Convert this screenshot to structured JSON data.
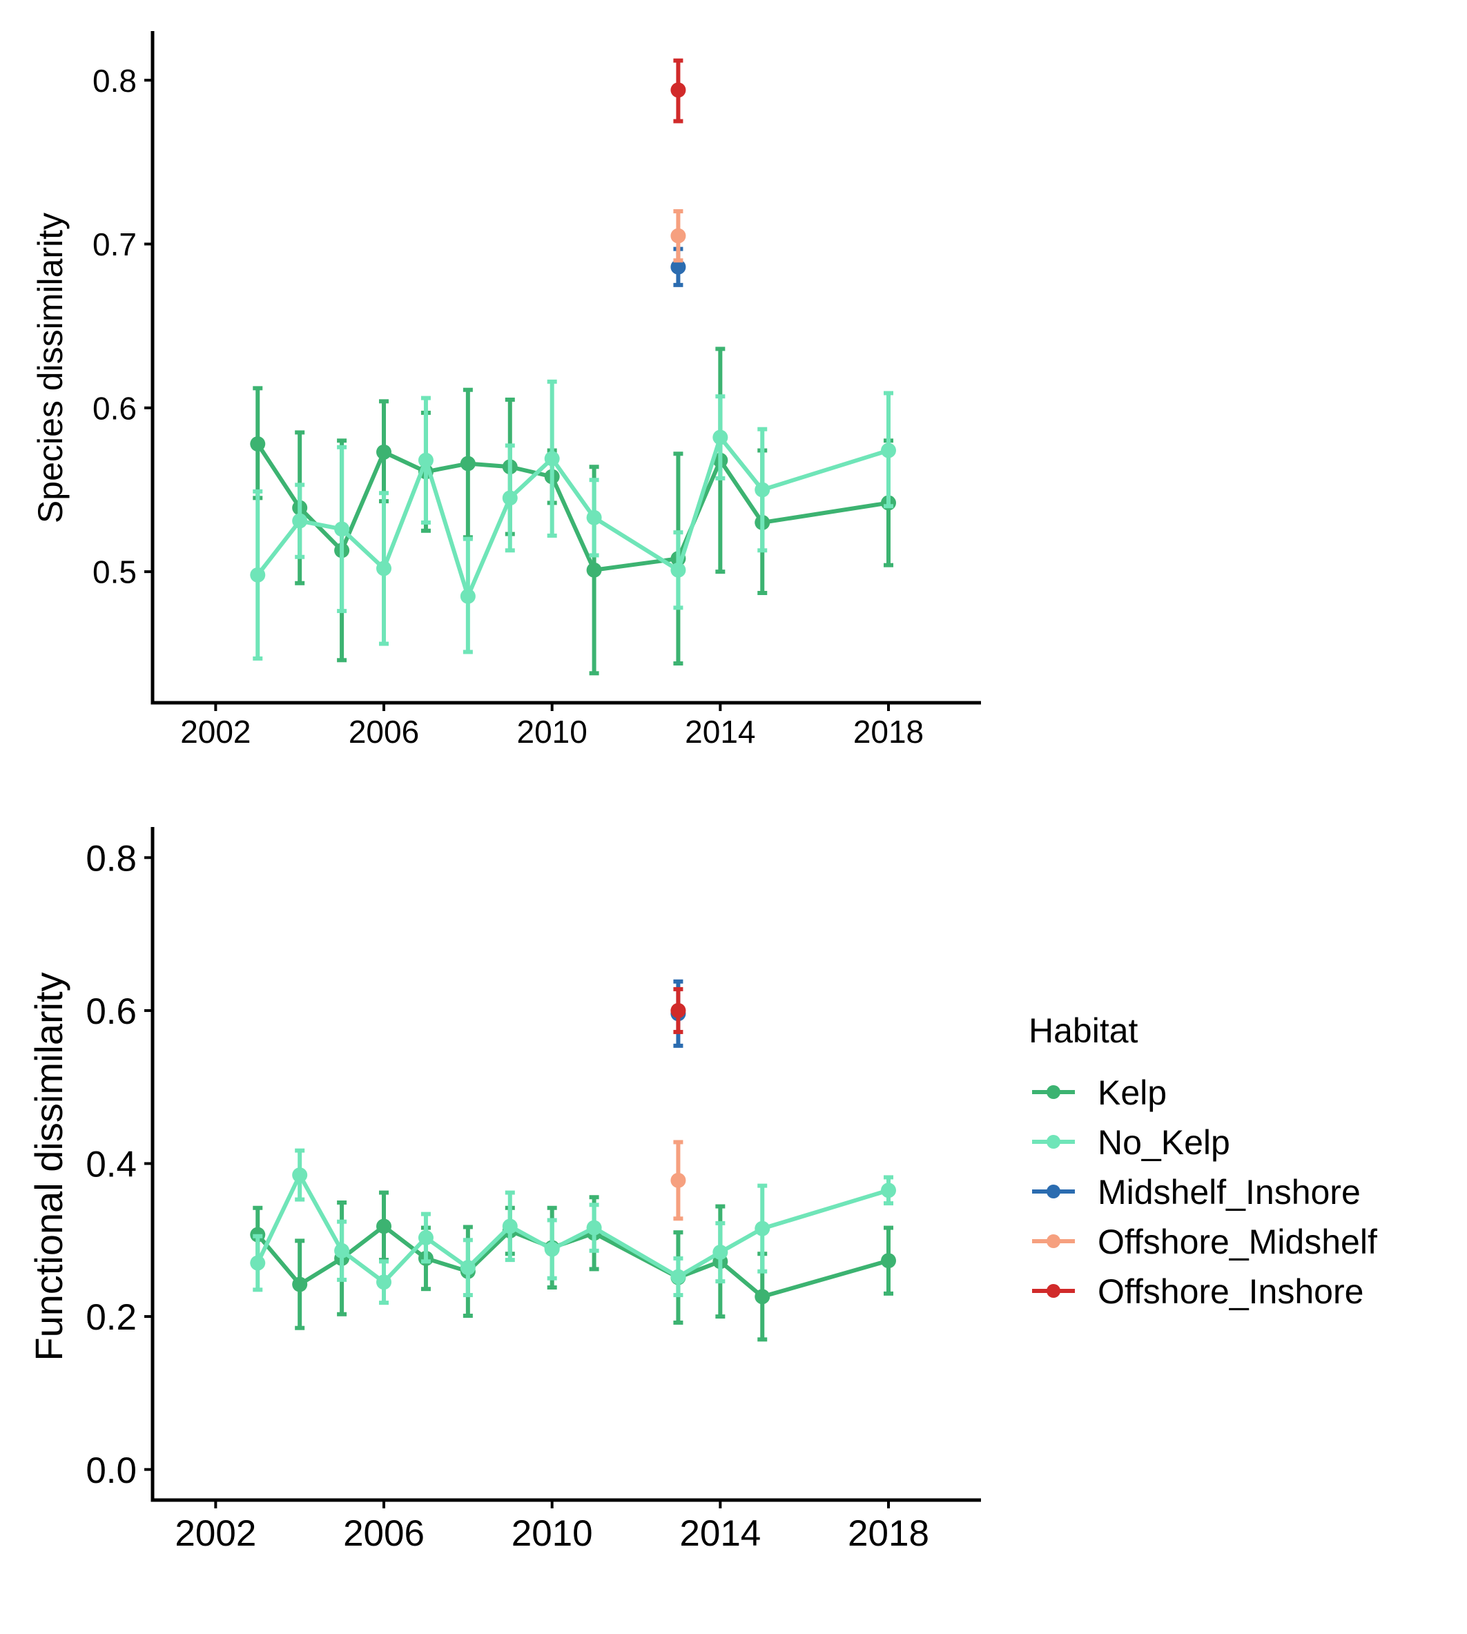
{
  "legend": {
    "title": "Habitat",
    "items": [
      {
        "label": "Kelp",
        "color": "#3CB371"
      },
      {
        "label": "No_Kelp",
        "color": "#6FE5B8"
      },
      {
        "label": "Midshelf_Inshore",
        "color": "#2B6CB0"
      },
      {
        "label": "Offshore_Midshelf",
        "color": "#F6A07F"
      },
      {
        "label": "Offshore_Inshore",
        "color": "#D12A2A"
      }
    ]
  },
  "chart_data": [
    {
      "type": "line",
      "ylabel": "Species dissimilarity",
      "xlabel": "",
      "xlim": [
        2000.5,
        2020.2
      ],
      "ylim": [
        0.42,
        0.83
      ],
      "x_ticks": [
        2002,
        2006,
        2010,
        2014,
        2018
      ],
      "y_ticks": [
        0.5,
        0.6,
        0.7,
        0.8
      ],
      "y_tick_labels": [
        "0.5",
        "0.6",
        "0.7",
        "0.8"
      ],
      "series": [
        {
          "name": "Kelp",
          "color": "#3CB371",
          "line": true,
          "points": [
            {
              "x": 2003,
              "y": 0.578,
              "lo": 0.545,
              "hi": 0.612
            },
            {
              "x": 2004,
              "y": 0.539,
              "lo": 0.493,
              "hi": 0.585
            },
            {
              "x": 2005,
              "y": 0.513,
              "lo": 0.446,
              "hi": 0.58
            },
            {
              "x": 2006,
              "y": 0.573,
              "lo": 0.543,
              "hi": 0.604
            },
            {
              "x": 2007,
              "y": 0.561,
              "lo": 0.525,
              "hi": 0.597
            },
            {
              "x": 2008,
              "y": 0.566,
              "lo": 0.521,
              "hi": 0.611
            },
            {
              "x": 2009,
              "y": 0.564,
              "lo": 0.523,
              "hi": 0.605
            },
            {
              "x": 2010,
              "y": 0.558,
              "lo": 0.542,
              "hi": 0.574
            },
            {
              "x": 2011,
              "y": 0.501,
              "lo": 0.438,
              "hi": 0.564
            },
            {
              "x": 2013,
              "y": 0.508,
              "lo": 0.444,
              "hi": 0.572
            },
            {
              "x": 2014,
              "y": 0.568,
              "lo": 0.5,
              "hi": 0.636
            },
            {
              "x": 2015,
              "y": 0.53,
              "lo": 0.487,
              "hi": 0.574
            },
            {
              "x": 2018,
              "y": 0.542,
              "lo": 0.504,
              "hi": 0.58
            }
          ]
        },
        {
          "name": "No_Kelp",
          "color": "#6FE5B8",
          "line": true,
          "points": [
            {
              "x": 2003,
              "y": 0.498,
              "lo": 0.447,
              "hi": 0.549
            },
            {
              "x": 2004,
              "y": 0.531,
              "lo": 0.509,
              "hi": 0.553
            },
            {
              "x": 2005,
              "y": 0.526,
              "lo": 0.476,
              "hi": 0.576
            },
            {
              "x": 2006,
              "y": 0.502,
              "lo": 0.456,
              "hi": 0.548
            },
            {
              "x": 2007,
              "y": 0.568,
              "lo": 0.53,
              "hi": 0.606
            },
            {
              "x": 2008,
              "y": 0.485,
              "lo": 0.451,
              "hi": 0.52
            },
            {
              "x": 2009,
              "y": 0.545,
              "lo": 0.513,
              "hi": 0.577
            },
            {
              "x": 2010,
              "y": 0.569,
              "lo": 0.522,
              "hi": 0.616
            },
            {
              "x": 2011,
              "y": 0.533,
              "lo": 0.51,
              "hi": 0.556
            },
            {
              "x": 2013,
              "y": 0.501,
              "lo": 0.478,
              "hi": 0.524
            },
            {
              "x": 2014,
              "y": 0.582,
              "lo": 0.557,
              "hi": 0.607
            },
            {
              "x": 2015,
              "y": 0.55,
              "lo": 0.513,
              "hi": 0.587
            },
            {
              "x": 2018,
              "y": 0.574,
              "lo": 0.54,
              "hi": 0.609
            }
          ]
        },
        {
          "name": "Midshelf_Inshore",
          "color": "#2B6CB0",
          "line": false,
          "points": [
            {
              "x": 2013,
              "y": 0.686,
              "lo": 0.675,
              "hi": 0.697
            }
          ]
        },
        {
          "name": "Offshore_Midshelf",
          "color": "#F6A07F",
          "line": false,
          "points": [
            {
              "x": 2013,
              "y": 0.705,
              "lo": 0.69,
              "hi": 0.72
            }
          ]
        },
        {
          "name": "Offshore_Inshore",
          "color": "#D12A2A",
          "line": false,
          "points": [
            {
              "x": 2013,
              "y": 0.794,
              "lo": 0.775,
              "hi": 0.812
            }
          ]
        }
      ]
    },
    {
      "type": "line",
      "ylabel": "Functional dissimilarity",
      "xlabel": "",
      "xlim": [
        2000.5,
        2020.2
      ],
      "ylim": [
        -0.04,
        0.84
      ],
      "x_ticks": [
        2002,
        2006,
        2010,
        2014,
        2018
      ],
      "y_ticks": [
        0.0,
        0.2,
        0.4,
        0.6,
        0.8
      ],
      "y_tick_labels": [
        "0.0",
        "0.2",
        "0.4",
        "0.6",
        "0.8"
      ],
      "series": [
        {
          "name": "Kelp",
          "color": "#3CB371",
          "line": true,
          "points": [
            {
              "x": 2003,
              "y": 0.307,
              "lo": 0.272,
              "hi": 0.342
            },
            {
              "x": 2004,
              "y": 0.242,
              "lo": 0.185,
              "hi": 0.299
            },
            {
              "x": 2005,
              "y": 0.276,
              "lo": 0.203,
              "hi": 0.349
            },
            {
              "x": 2006,
              "y": 0.318,
              "lo": 0.274,
              "hi": 0.362
            },
            {
              "x": 2007,
              "y": 0.276,
              "lo": 0.236,
              "hi": 0.316
            },
            {
              "x": 2008,
              "y": 0.259,
              "lo": 0.201,
              "hi": 0.317
            },
            {
              "x": 2009,
              "y": 0.312,
              "lo": 0.282,
              "hi": 0.342
            },
            {
              "x": 2010,
              "y": 0.29,
              "lo": 0.238,
              "hi": 0.342
            },
            {
              "x": 2011,
              "y": 0.309,
              "lo": 0.262,
              "hi": 0.356
            },
            {
              "x": 2013,
              "y": 0.251,
              "lo": 0.192,
              "hi": 0.31
            },
            {
              "x": 2014,
              "y": 0.272,
              "lo": 0.2,
              "hi": 0.344
            },
            {
              "x": 2015,
              "y": 0.226,
              "lo": 0.17,
              "hi": 0.282
            },
            {
              "x": 2018,
              "y": 0.273,
              "lo": 0.23,
              "hi": 0.316
            }
          ]
        },
        {
          "name": "No_Kelp",
          "color": "#6FE5B8",
          "line": true,
          "points": [
            {
              "x": 2003,
              "y": 0.27,
              "lo": 0.235,
              "hi": 0.305
            },
            {
              "x": 2004,
              "y": 0.385,
              "lo": 0.353,
              "hi": 0.417
            },
            {
              "x": 2005,
              "y": 0.286,
              "lo": 0.248,
              "hi": 0.324
            },
            {
              "x": 2006,
              "y": 0.245,
              "lo": 0.218,
              "hi": 0.272
            },
            {
              "x": 2007,
              "y": 0.303,
              "lo": 0.272,
              "hi": 0.334
            },
            {
              "x": 2008,
              "y": 0.264,
              "lo": 0.228,
              "hi": 0.3
            },
            {
              "x": 2009,
              "y": 0.318,
              "lo": 0.274,
              "hi": 0.362
            },
            {
              "x": 2010,
              "y": 0.288,
              "lo": 0.25,
              "hi": 0.326
            },
            {
              "x": 2011,
              "y": 0.316,
              "lo": 0.286,
              "hi": 0.346
            },
            {
              "x": 2013,
              "y": 0.252,
              "lo": 0.228,
              "hi": 0.276
            },
            {
              "x": 2014,
              "y": 0.284,
              "lo": 0.246,
              "hi": 0.322
            },
            {
              "x": 2015,
              "y": 0.315,
              "lo": 0.259,
              "hi": 0.371
            },
            {
              "x": 2018,
              "y": 0.365,
              "lo": 0.348,
              "hi": 0.382
            }
          ]
        },
        {
          "name": "Midshelf_Inshore",
          "color": "#2B6CB0",
          "line": false,
          "points": [
            {
              "x": 2013,
              "y": 0.596,
              "lo": 0.554,
              "hi": 0.638
            }
          ]
        },
        {
          "name": "Offshore_Midshelf",
          "color": "#F6A07F",
          "line": false,
          "points": [
            {
              "x": 2013,
              "y": 0.378,
              "lo": 0.328,
              "hi": 0.428
            }
          ]
        },
        {
          "name": "Offshore_Inshore",
          "color": "#D12A2A",
          "line": false,
          "points": [
            {
              "x": 2013,
              "y": 0.6,
              "lo": 0.572,
              "hi": 0.628
            }
          ]
        }
      ]
    }
  ]
}
